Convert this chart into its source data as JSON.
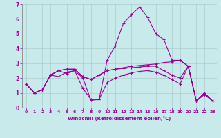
{
  "xlabel": "Windchill (Refroidissement éolien,°C)",
  "bg_color": "#c8eaea",
  "grid_color": "#aacccc",
  "line_color": "#990099",
  "xlim": [
    -0.5,
    23.5
  ],
  "ylim": [
    0,
    7
  ],
  "xticks": [
    0,
    1,
    2,
    3,
    4,
    5,
    6,
    7,
    8,
    9,
    10,
    11,
    12,
    13,
    14,
    15,
    16,
    17,
    18,
    19,
    20,
    21,
    22,
    23
  ],
  "yticks": [
    0,
    1,
    2,
    3,
    4,
    5,
    6,
    7
  ],
  "line1_x": [
    0,
    1,
    2,
    3,
    4,
    5,
    6,
    7,
    8,
    9,
    10,
    11,
    12,
    13,
    14,
    15,
    16,
    17,
    18,
    19,
    20,
    21,
    22,
    23
  ],
  "line1_y": [
    1.6,
    1.0,
    1.2,
    2.2,
    2.1,
    2.4,
    2.5,
    1.3,
    0.55,
    0.55,
    3.2,
    4.2,
    5.7,
    6.3,
    6.8,
    6.1,
    5.0,
    4.6,
    3.2,
    3.2,
    2.8,
    0.45,
    1.0,
    0.45
  ],
  "line2_x": [
    0,
    1,
    2,
    3,
    4,
    5,
    6,
    7,
    8,
    9,
    10,
    11,
    12,
    13,
    14,
    15,
    16,
    17,
    18,
    19,
    20,
    21,
    22,
    23
  ],
  "line2_y": [
    1.6,
    1.0,
    1.2,
    2.2,
    2.5,
    2.6,
    2.6,
    2.1,
    1.9,
    2.2,
    2.5,
    2.6,
    2.7,
    2.8,
    2.85,
    2.9,
    2.95,
    3.05,
    3.1,
    3.2,
    2.8,
    0.45,
    1.0,
    0.45
  ],
  "line3_x": [
    0,
    1,
    2,
    3,
    4,
    5,
    6,
    7,
    8,
    9,
    10,
    11,
    12,
    13,
    14,
    15,
    16,
    17,
    18,
    19,
    20,
    21,
    22,
    23
  ],
  "line3_y": [
    1.6,
    1.0,
    1.2,
    2.2,
    2.5,
    2.6,
    2.6,
    2.1,
    1.9,
    2.2,
    2.5,
    2.6,
    2.65,
    2.7,
    2.75,
    2.8,
    2.8,
    2.5,
    2.2,
    2.0,
    2.8,
    0.45,
    0.9,
    0.45
  ],
  "line4_x": [
    0,
    1,
    2,
    3,
    4,
    5,
    6,
    7,
    8,
    9,
    10,
    11,
    12,
    13,
    14,
    15,
    16,
    17,
    18,
    19,
    20,
    21,
    22,
    23
  ],
  "line4_y": [
    1.6,
    1.0,
    1.2,
    2.2,
    2.5,
    2.3,
    2.5,
    2.0,
    0.5,
    0.55,
    1.7,
    2.0,
    2.2,
    2.35,
    2.45,
    2.5,
    2.4,
    2.2,
    1.9,
    1.6,
    2.8,
    0.45,
    0.9,
    0.45
  ]
}
